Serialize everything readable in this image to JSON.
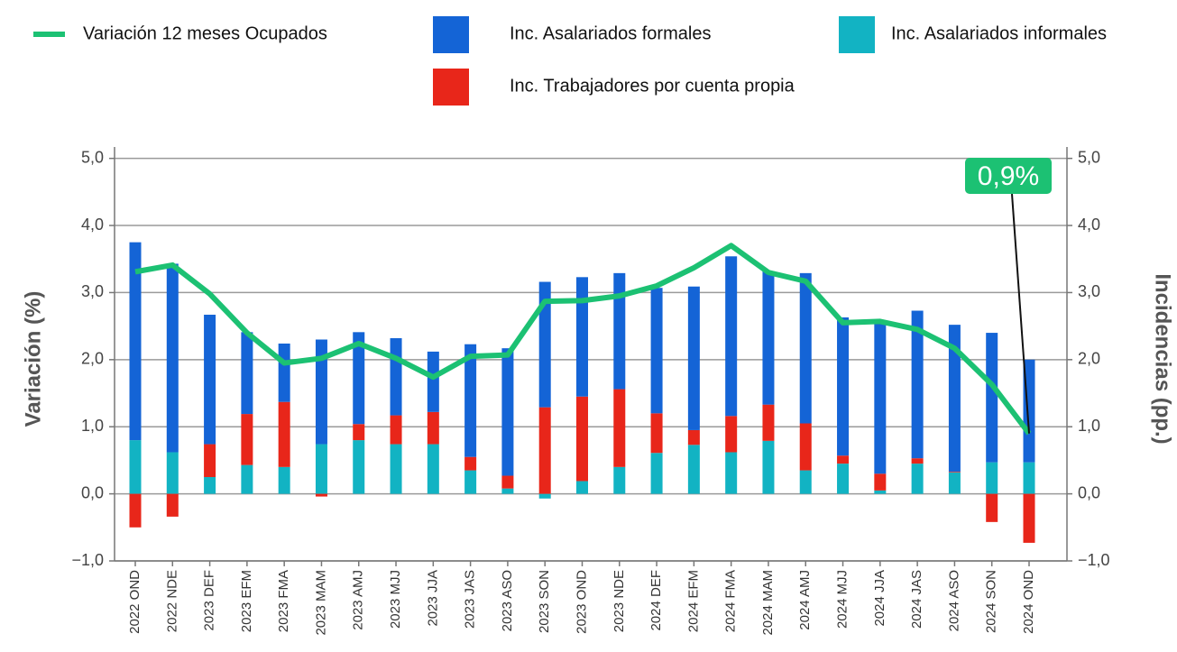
{
  "chart_data": {
    "type": "bar_line",
    "categories": [
      "2022 OND",
      "2022 NDE",
      "2023 DEF",
      "2023 EFM",
      "2023 FMA",
      "2023 MAM",
      "2023 AMJ",
      "2023 MJJ",
      "2023 JJA",
      "2023 JAS",
      "2023 ASO",
      "2023 SON",
      "2023 OND",
      "2023 NDE",
      "2024 DEF",
      "2024 EFM",
      "2024 FMA",
      "2024 MAM",
      "2024 AMJ",
      "2024 MJJ",
      "2024 JJA",
      "2024 JAS",
      "2024 ASO",
      "2024 SON",
      "2024 OND"
    ],
    "series": [
      {
        "name": "Variación 12 meses Ocupados",
        "color": "#1cc173",
        "kind": "line",
        "values": [
          3.31,
          3.41,
          2.98,
          2.4,
          1.95,
          2.02,
          2.24,
          2.02,
          1.74,
          2.05,
          2.07,
          2.87,
          2.88,
          2.95,
          3.1,
          3.37,
          3.7,
          3.3,
          3.17,
          2.55,
          2.57,
          2.45,
          2.17,
          1.63,
          0.9
        ]
      },
      {
        "name": "Inc. Asalariados formales",
        "color": "#1464d6",
        "kind": "bar",
        "axis": "y2",
        "values": [
          2.95,
          2.81,
          1.93,
          1.22,
          0.87,
          1.56,
          1.37,
          1.15,
          0.9,
          1.68,
          1.9,
          1.87,
          1.78,
          1.73,
          1.87,
          2.14,
          2.38,
          1.99,
          2.24,
          2.06,
          2.26,
          2.2,
          2.19,
          1.93,
          1.53
        ]
      },
      {
        "name": "Inc. Asalariados informales",
        "color": "#12b3c3",
        "kind": "bar",
        "axis": "y2",
        "values": [
          0.8,
          0.62,
          0.25,
          0.43,
          0.4,
          0.74,
          0.8,
          0.74,
          0.74,
          0.35,
          0.08,
          -0.07,
          0.19,
          0.4,
          0.61,
          0.73,
          0.62,
          0.79,
          0.35,
          0.45,
          0.05,
          0.45,
          0.32,
          0.47,
          0.47
        ]
      },
      {
        "name": "Inc. Trabajadores por cuenta propia",
        "color": "#e8261a",
        "kind": "bar",
        "axis": "y2",
        "values": [
          -0.5,
          -0.34,
          0.49,
          0.76,
          0.97,
          -0.04,
          0.24,
          0.43,
          0.48,
          0.2,
          0.19,
          1.29,
          1.26,
          1.16,
          0.59,
          0.22,
          0.54,
          0.54,
          0.7,
          0.12,
          0.25,
          0.08,
          0.01,
          -0.42,
          -0.73
        ]
      }
    ],
    "y_label": "Variación (%)",
    "y2_label": "Incidencias (pp.)",
    "ylim": [
      -1,
      5.17
    ],
    "y2lim": [
      -1,
      5.17
    ],
    "yticks": [
      {
        "value": -1,
        "label": "−1,0"
      },
      {
        "value": 0,
        "label": "0,0"
      },
      {
        "value": 1,
        "label": "1,0"
      },
      {
        "value": 2,
        "label": "2,0"
      },
      {
        "value": 3,
        "label": "3,0"
      },
      {
        "value": 4,
        "label": "4,0"
      },
      {
        "value": 5,
        "label": "5,0"
      }
    ],
    "y2ticks": [
      {
        "value": -1,
        "label": "−1,0"
      },
      {
        "value": 0,
        "label": "0,0"
      },
      {
        "value": 1,
        "label": "1,0"
      },
      {
        "value": 2,
        "label": "2,0"
      },
      {
        "value": 3,
        "label": "3,0"
      },
      {
        "value": 4,
        "label": "4,0"
      },
      {
        "value": 5,
        "label": "5,0"
      }
    ],
    "grid": true,
    "annotation": "0,9%"
  }
}
